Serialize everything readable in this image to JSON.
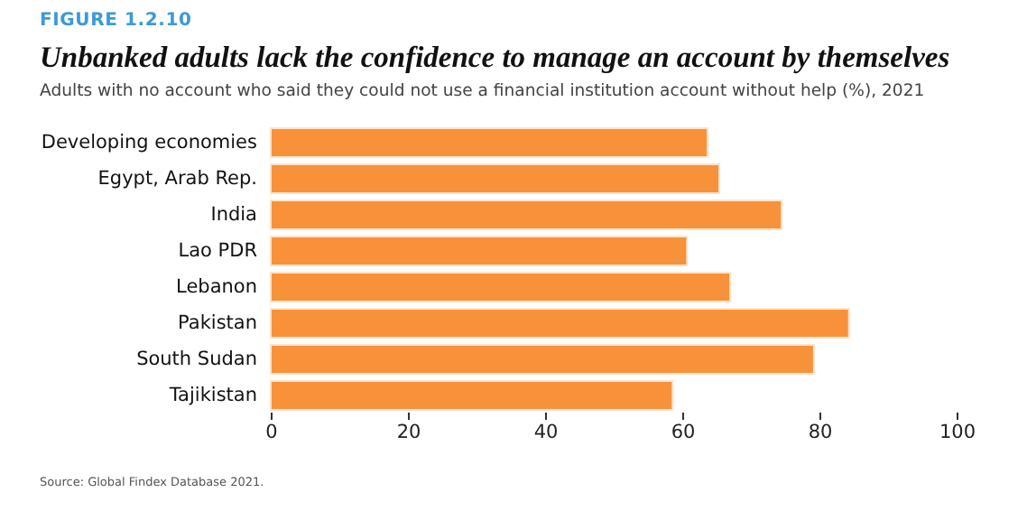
{
  "chart_data": {
    "type": "bar",
    "orientation": "horizontal",
    "title": "Unbanked adults lack the confidence to manage an account by themselves",
    "subtitle": "Adults with no account who said they could not use a financial institution account without help (%), 2021",
    "categories": [
      "Developing economies",
      "Egypt, Arab Rep.",
      "India",
      "Lao PDR",
      "Lebanon",
      "Pakistan",
      "South Sudan",
      "Tajikistan"
    ],
    "values": [
      63.7,
      65.4,
      74.5,
      60.7,
      67.0,
      84.3,
      79.2,
      58.6
    ],
    "color": "#f7923a",
    "xlim": [
      0,
      100
    ],
    "xticks": [
      0,
      20,
      40,
      60,
      80,
      100
    ],
    "grid": false,
    "annotations": [
      "FIGURE 1.2.10",
      "Source: Global Findex Database 2021."
    ]
  }
}
